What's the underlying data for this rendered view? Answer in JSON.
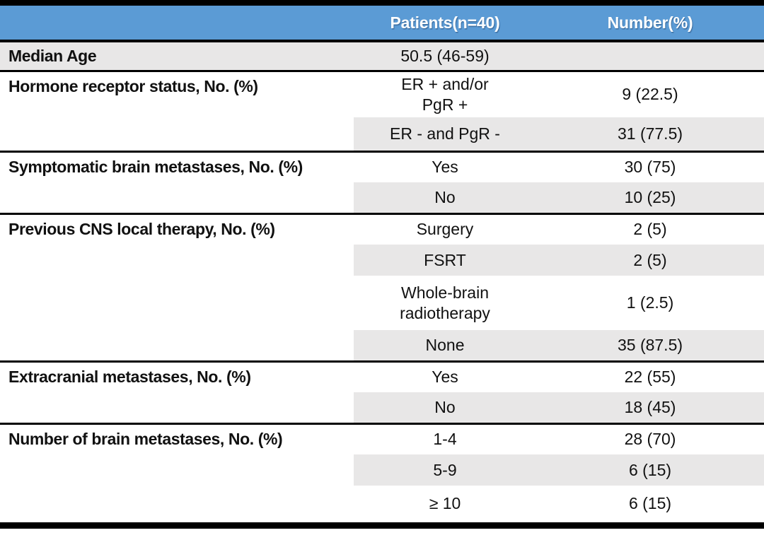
{
  "header": {
    "blank_col": "",
    "patients_col": "Patients(n=40)",
    "number_col": "Number(%)"
  },
  "colors": {
    "header_bg": "#5B9BD5",
    "header_text": "#FFFFFF",
    "alt_row_bg": "#E8E7E7",
    "rule": "#000000"
  },
  "sections": [
    {
      "label": "Median Age",
      "rows": [
        {
          "patients": "50.5 (46-59)",
          "number": ""
        }
      ]
    },
    {
      "label": "Hormone receptor status, No. (%)",
      "rows": [
        {
          "patients": "ER + and/or\nPgR +",
          "number": "9 (22.5)"
        },
        {
          "patients": "ER - and PgR -",
          "number": "31 (77.5)"
        }
      ]
    },
    {
      "label": "Symptomatic brain metastases, No. (%)",
      "rows": [
        {
          "patients": "Yes",
          "number": "30 (75)"
        },
        {
          "patients": "No",
          "number": "10 (25)"
        }
      ]
    },
    {
      "label": "Previous CNS local therapy, No. (%)",
      "rows": [
        {
          "patients": "Surgery",
          "number": "2 (5)"
        },
        {
          "patients": "FSRT",
          "number": "2 (5)"
        },
        {
          "patients": "Whole-brain\nradiotherapy",
          "number": "1 (2.5)"
        },
        {
          "patients": "None",
          "number": "35 (87.5)"
        }
      ]
    },
    {
      "label": "Extracranial metastases, No. (%)",
      "rows": [
        {
          "patients": "Yes",
          "number": "22 (55)"
        },
        {
          "patients": "No",
          "number": "18 (45)"
        }
      ]
    },
    {
      "label": "Number of brain metastases, No. (%)",
      "rows": [
        {
          "patients": "1-4",
          "number": "28 (70)"
        },
        {
          "patients": "5-9",
          "number": "6 (15)"
        },
        {
          "patients": "≥ 10",
          "number": "6 (15)"
        }
      ]
    }
  ]
}
